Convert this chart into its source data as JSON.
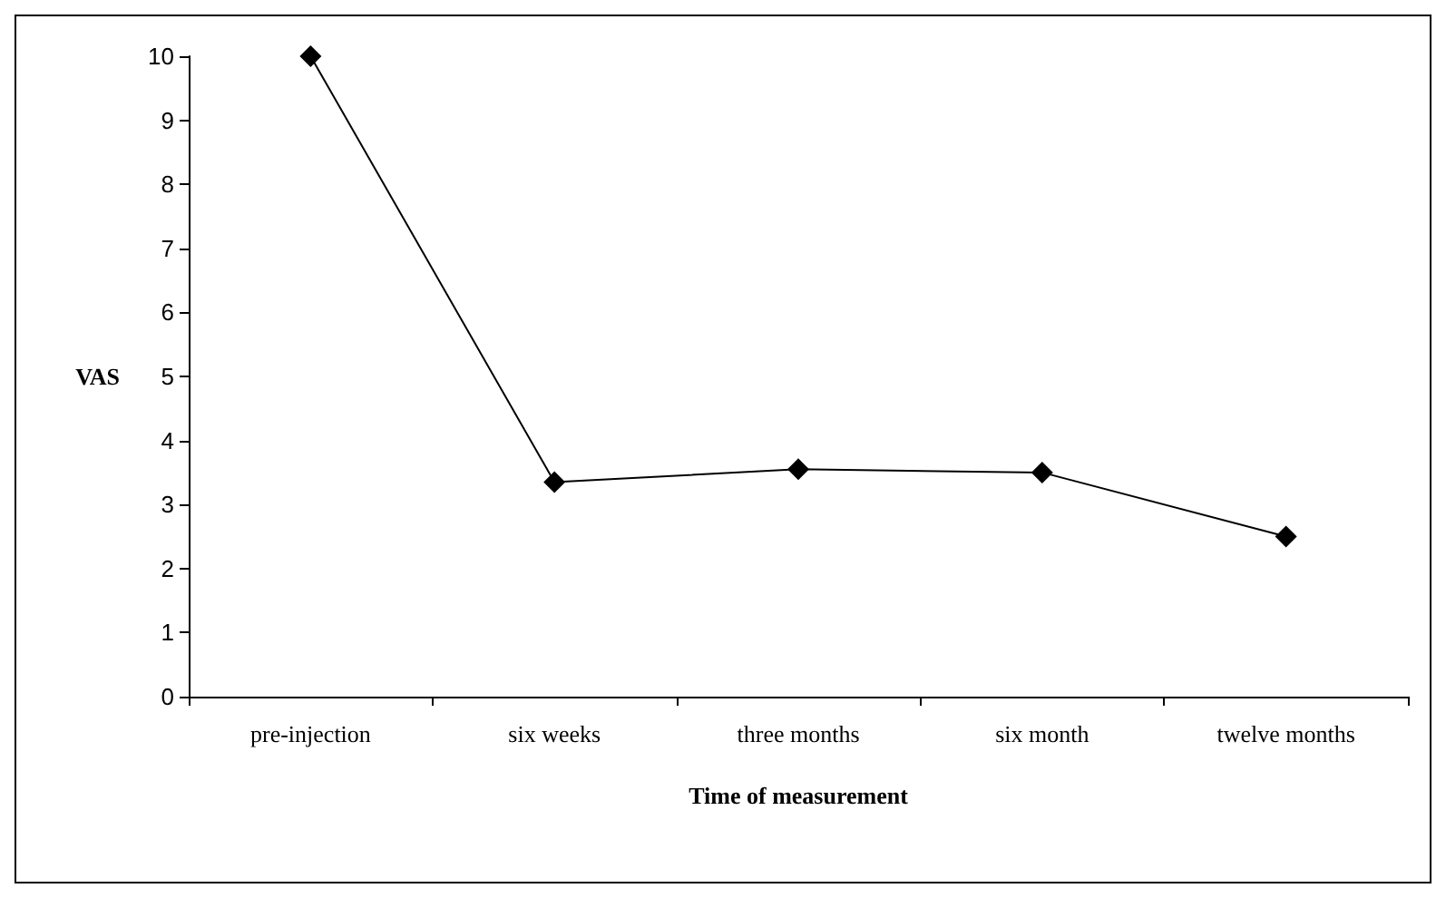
{
  "chart_data": {
    "type": "line",
    "xlabel": "Time of measurement",
    "ylabel": "VAS",
    "categories": [
      "pre-injection",
      "six weeks",
      "three months",
      "six month",
      "twelve months"
    ],
    "series": [
      {
        "color": "#000000",
        "values": [
          10,
          3.35,
          3.55,
          3.5,
          2.5
        ]
      }
    ],
    "ylim": [
      0,
      10
    ],
    "yticks": [
      0,
      1,
      2,
      3,
      4,
      5,
      6,
      7,
      8,
      9,
      10
    ],
    "grid": false,
    "marker": "diamond",
    "line_style": "solid"
  }
}
